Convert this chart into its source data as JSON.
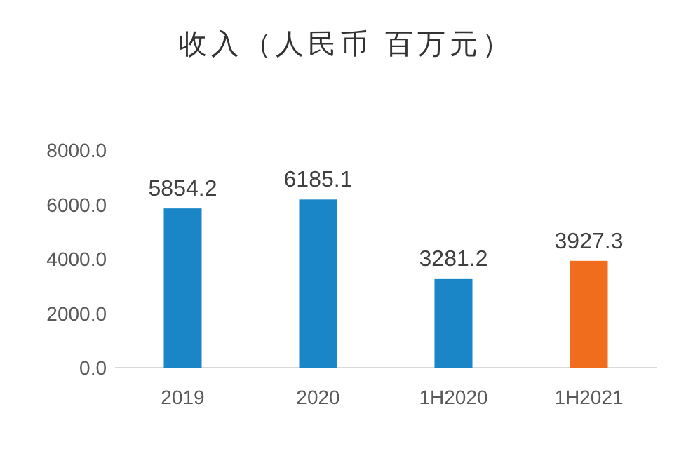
{
  "chart_data": {
    "type": "bar",
    "title": "收入（人民币 百万元）",
    "categories": [
      "2019",
      "2020",
      "1H2020",
      "1H2021"
    ],
    "values": [
      5854.2,
      6185.1,
      3281.2,
      3927.3
    ],
    "colors": [
      "#1a86c8",
      "#1a86c8",
      "#1a86c8",
      "#f06d1e"
    ],
    "ylim": [
      0,
      8000
    ],
    "yticks": [
      {
        "value": 0,
        "label": "0.0"
      },
      {
        "value": 2000,
        "label": "2000.0"
      },
      {
        "value": 4000,
        "label": "4000.0"
      },
      {
        "value": 6000,
        "label": "6000.0"
      },
      {
        "value": 8000,
        "label": "8000.0"
      }
    ],
    "data_labels": true
  }
}
